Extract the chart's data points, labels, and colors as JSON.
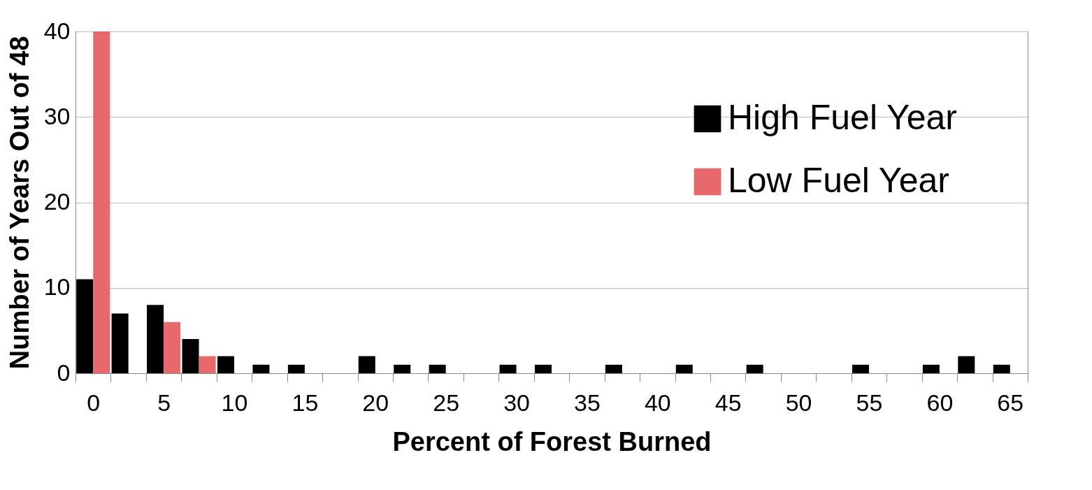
{
  "chart_data": {
    "type": "bar",
    "xlabel": "Percent of Forest Burned",
    "ylabel": "Number of Years Out of 48",
    "categories": [
      "0",
      null,
      "5",
      null,
      "10",
      null,
      "15",
      null,
      "20",
      null,
      "25",
      null,
      "30",
      null,
      "35",
      null,
      "40",
      null,
      "45",
      null,
      "50",
      null,
      "55",
      null,
      "60",
      null,
      "65"
    ],
    "series": [
      {
        "name": "High Fuel Year",
        "color": "#000000",
        "values": [
          11,
          7,
          8,
          4,
          2,
          1,
          1,
          0,
          2,
          1,
          1,
          0,
          1,
          1,
          0,
          1,
          0,
          1,
          0,
          1,
          0,
          0,
          1,
          0,
          1,
          2,
          1
        ]
      },
      {
        "name": "Low Fuel Year",
        "color": "#e8696b",
        "values": [
          40,
          0,
          6,
          2,
          0,
          0,
          0,
          0,
          0,
          0,
          0,
          0,
          0,
          0,
          0,
          0,
          0,
          0,
          0,
          0,
          0,
          0,
          0,
          0,
          0,
          0,
          0
        ]
      }
    ],
    "ylim": [
      0,
      40
    ],
    "yticks": [
      0,
      10,
      20,
      30,
      40
    ],
    "grid": "y",
    "legend": "top right"
  }
}
